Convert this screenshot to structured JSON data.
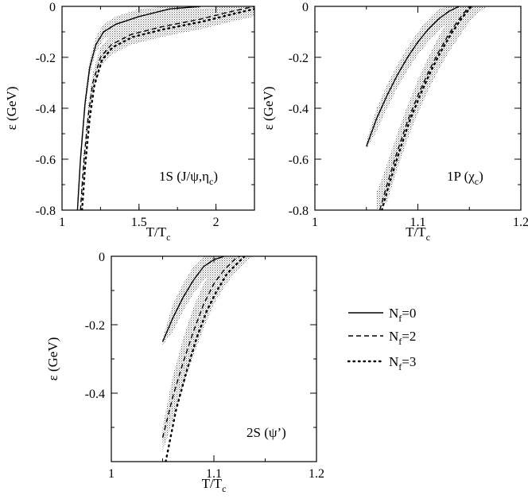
{
  "chart_data": [
    {
      "type": "line",
      "panel_label": {
        "main": "1S (J/ψ,η",
        "sub": "c",
        "end": ")"
      },
      "xlabel": {
        "main": "T/T",
        "sub": "c"
      },
      "ylabel": "ε (GeV)",
      "xlim": [
        1.0,
        2.25
      ],
      "ylim": [
        -0.8,
        0.0
      ],
      "xticks": [
        1.0,
        1.5,
        2.0
      ],
      "xtick_labels": [
        "1",
        "1.5",
        "2"
      ],
      "yticks": [
        0.0,
        -0.2,
        -0.4,
        -0.6,
        -0.8
      ],
      "ytick_labels": [
        "0",
        "-0.2",
        "-0.4",
        "-0.6",
        "-0.8"
      ],
      "series": [
        {
          "name": "Nf=0",
          "style": "solid",
          "x": [
            1.1,
            1.12,
            1.15,
            1.18,
            1.22,
            1.27,
            1.35,
            1.5,
            1.7,
            1.9
          ],
          "y": [
            -0.8,
            -0.6,
            -0.38,
            -0.24,
            -0.15,
            -0.1,
            -0.07,
            -0.04,
            -0.01,
            0.0
          ],
          "band": {
            "x": [
              1.1,
              1.12,
              1.15,
              1.18,
              1.22,
              1.27,
              1.35,
              1.5,
              1.7,
              1.9
            ],
            "lo": [
              -0.8,
              -0.63,
              -0.41,
              -0.27,
              -0.18,
              -0.13,
              -0.1,
              -0.07,
              -0.04,
              -0.02
            ],
            "hi": [
              -0.77,
              -0.56,
              -0.35,
              -0.21,
              -0.12,
              -0.07,
              -0.04,
              -0.01,
              0.0,
              0.0
            ]
          }
        },
        {
          "name": "Nf=2",
          "style": "dashed",
          "x": [
            1.12,
            1.14,
            1.17,
            1.2,
            1.25,
            1.32,
            1.45,
            1.65,
            1.9,
            2.1,
            2.25
          ],
          "y": [
            -0.8,
            -0.62,
            -0.43,
            -0.3,
            -0.2,
            -0.15,
            -0.11,
            -0.08,
            -0.05,
            -0.02,
            0.0
          ],
          "band": {
            "x": [
              1.12,
              1.14,
              1.17,
              1.2,
              1.25,
              1.32,
              1.45,
              1.65,
              1.9,
              2.1,
              2.25
            ],
            "lo": [
              -0.8,
              -0.66,
              -0.47,
              -0.34,
              -0.24,
              -0.19,
              -0.15,
              -0.12,
              -0.09,
              -0.06,
              -0.04
            ],
            "hi": [
              -0.76,
              -0.58,
              -0.39,
              -0.26,
              -0.16,
              -0.11,
              -0.07,
              -0.04,
              -0.01,
              0.0,
              0.0
            ]
          }
        },
        {
          "name": "Nf=3",
          "style": "dotted",
          "x": [
            1.13,
            1.15,
            1.18,
            1.21,
            1.26,
            1.33,
            1.46,
            1.66,
            1.91,
            2.11,
            2.25
          ],
          "y": [
            -0.8,
            -0.63,
            -0.44,
            -0.31,
            -0.21,
            -0.16,
            -0.12,
            -0.09,
            -0.06,
            -0.03,
            -0.01
          ]
        }
      ]
    },
    {
      "type": "line",
      "panel_label": {
        "main": "1P (χ",
        "sub": "c",
        "end": ")"
      },
      "xlabel": {
        "main": "T/T",
        "sub": "c"
      },
      "ylabel": "ε (GeV)",
      "xlim": [
        1.0,
        1.2
      ],
      "ylim": [
        -0.8,
        0.0
      ],
      "xticks": [
        1.0,
        1.1,
        1.2
      ],
      "xtick_labels": [
        "1",
        "1.1",
        "1.2"
      ],
      "yticks": [
        0.0,
        -0.2,
        -0.4,
        -0.6,
        -0.8
      ],
      "ytick_labels": [
        "0",
        "-0.2",
        "-0.4",
        "-0.6",
        "-0.8"
      ],
      "series": [
        {
          "name": "Nf=0",
          "style": "solid",
          "x": [
            1.05,
            1.06,
            1.07,
            1.08,
            1.09,
            1.1,
            1.11,
            1.12,
            1.13,
            1.14
          ],
          "y": [
            -0.55,
            -0.44,
            -0.35,
            -0.27,
            -0.2,
            -0.14,
            -0.09,
            -0.05,
            -0.02,
            0.0
          ],
          "band": {
            "x": [
              1.05,
              1.06,
              1.07,
              1.08,
              1.09,
              1.1,
              1.11,
              1.12,
              1.13,
              1.14,
              1.148
            ],
            "lo": [
              -0.56,
              -0.49,
              -0.4,
              -0.32,
              -0.25,
              -0.19,
              -0.14,
              -0.1,
              -0.06,
              -0.03,
              -0.01
            ],
            "hi": [
              -0.53,
              -0.4,
              -0.31,
              -0.23,
              -0.16,
              -0.1,
              -0.05,
              -0.01,
              0.0,
              0.0,
              0.0
            ]
          }
        },
        {
          "name": "Nf=2",
          "style": "dashed",
          "x": [
            1.063,
            1.07,
            1.08,
            1.09,
            1.1,
            1.11,
            1.12,
            1.13,
            1.14,
            1.15
          ],
          "y": [
            -0.8,
            -0.7,
            -0.57,
            -0.45,
            -0.35,
            -0.26,
            -0.18,
            -0.11,
            -0.05,
            0.0
          ],
          "band": {
            "x": [
              1.06,
              1.07,
              1.08,
              1.09,
              1.1,
              1.11,
              1.12,
              1.13,
              1.14,
              1.15,
              1.16,
              1.168
            ],
            "lo": [
              -0.8,
              -0.77,
              -0.64,
              -0.52,
              -0.42,
              -0.33,
              -0.25,
              -0.18,
              -0.12,
              -0.06,
              -0.02,
              0.0
            ],
            "hi": [
              -0.73,
              -0.62,
              -0.5,
              -0.39,
              -0.29,
              -0.2,
              -0.12,
              -0.05,
              0.0,
              0.0,
              0.0,
              0.0
            ]
          }
        },
        {
          "name": "Nf=3",
          "style": "dotted",
          "x": [
            1.065,
            1.072,
            1.082,
            1.092,
            1.102,
            1.112,
            1.122,
            1.132,
            1.142,
            1.152
          ],
          "y": [
            -0.8,
            -0.7,
            -0.57,
            -0.45,
            -0.35,
            -0.26,
            -0.18,
            -0.11,
            -0.05,
            0.0
          ]
        }
      ]
    },
    {
      "type": "line",
      "panel_label": {
        "main": "2S (ψ’)",
        "sub": "",
        "end": ""
      },
      "xlabel": {
        "main": "T/T",
        "sub": "c"
      },
      "ylabel": "ε (GeV)",
      "xlim": [
        1.0,
        1.2
      ],
      "ylim": [
        -0.6,
        0.0
      ],
      "xticks": [
        1.0,
        1.1,
        1.2
      ],
      "xtick_labels": [
        "1",
        "1.1",
        "1.2"
      ],
      "yticks": [
        0.0,
        -0.2,
        -0.4
      ],
      "ytick_labels": [
        "0",
        "-0.2",
        "-0.4"
      ],
      "series": [
        {
          "name": "Nf=0",
          "style": "solid",
          "x": [
            1.05,
            1.06,
            1.07,
            1.08,
            1.09,
            1.1,
            1.11
          ],
          "y": [
            -0.25,
            -0.18,
            -0.12,
            -0.07,
            -0.03,
            -0.01,
            0.0
          ],
          "band": {
            "x": [
              1.05,
              1.06,
              1.07,
              1.08,
              1.09,
              1.1,
              1.11,
              1.12,
              1.128
            ],
            "lo": [
              -0.26,
              -0.22,
              -0.16,
              -0.11,
              -0.07,
              -0.04,
              -0.02,
              -0.01,
              0.0
            ],
            "hi": [
              -0.24,
              -0.14,
              -0.08,
              -0.03,
              0.0,
              0.0,
              0.0,
              0.0,
              0.0
            ]
          }
        },
        {
          "name": "Nf=2",
          "style": "dashed",
          "x": [
            1.05,
            1.06,
            1.07,
            1.08,
            1.09,
            1.1,
            1.11,
            1.12,
            1.125
          ],
          "y": [
            -0.53,
            -0.41,
            -0.31,
            -0.22,
            -0.14,
            -0.08,
            -0.04,
            -0.01,
            0.0
          ],
          "band": {
            "x": [
              1.05,
              1.06,
              1.07,
              1.08,
              1.09,
              1.1,
              1.11,
              1.12,
              1.13,
              1.138
            ],
            "lo": [
              -0.57,
              -0.48,
              -0.38,
              -0.29,
              -0.21,
              -0.14,
              -0.09,
              -0.05,
              -0.02,
              0.0
            ],
            "hi": [
              -0.5,
              -0.35,
              -0.24,
              -0.15,
              -0.08,
              -0.03,
              0.0,
              0.0,
              0.0,
              0.0
            ]
          }
        },
        {
          "name": "Nf=3",
          "style": "dotted",
          "x": [
            1.053,
            1.063,
            1.073,
            1.083,
            1.093,
            1.103,
            1.113,
            1.123,
            1.13
          ],
          "y": [
            -0.6,
            -0.45,
            -0.34,
            -0.24,
            -0.16,
            -0.1,
            -0.05,
            -0.02,
            0.0
          ]
        }
      ]
    }
  ],
  "legend": {
    "placement": "right of bottom panel",
    "items": [
      {
        "style": "solid",
        "main": "N",
        "sub": "f",
        "end": "=0"
      },
      {
        "style": "dashed",
        "main": "N",
        "sub": "f",
        "end": "=2"
      },
      {
        "style": "dotted",
        "main": "N",
        "sub": "f",
        "end": "=3"
      }
    ]
  }
}
